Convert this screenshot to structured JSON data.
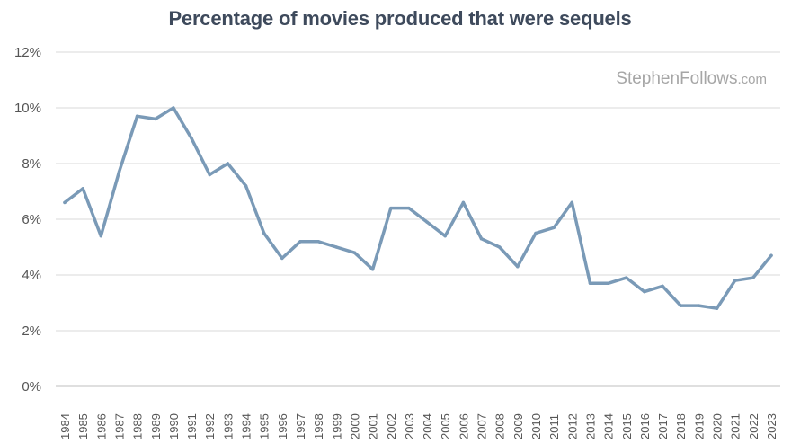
{
  "chart_data": {
    "type": "line",
    "title": "Percentage of movies produced that were sequels",
    "xlabel": "",
    "ylabel": "",
    "watermark": {
      "main": "StephenFollows",
      "suffix": ".com"
    },
    "categories": [
      "1984",
      "1985",
      "1986",
      "1987",
      "1988",
      "1989",
      "1990",
      "1991",
      "1992",
      "1993",
      "1994",
      "1995",
      "1996",
      "1997",
      "1998",
      "1999",
      "2000",
      "2001",
      "2002",
      "2003",
      "2004",
      "2005",
      "2006",
      "2007",
      "2008",
      "2009",
      "2010",
      "2011",
      "2012",
      "2013",
      "2014",
      "2015",
      "2016",
      "2017",
      "2018",
      "2019",
      "2020",
      "2021",
      "2022",
      "2023"
    ],
    "series": [
      {
        "values": [
          6.6,
          7.1,
          5.4,
          7.7,
          9.7,
          9.6,
          10.0,
          8.9,
          7.6,
          8.0,
          7.2,
          5.5,
          4.6,
          5.2,
          5.2,
          5.0,
          4.8,
          4.2,
          6.4,
          6.4,
          5.9,
          5.4,
          6.6,
          5.3,
          5.0,
          4.3,
          5.5,
          5.7,
          6.6,
          3.7,
          3.7,
          3.9,
          3.4,
          3.6,
          2.9,
          2.9,
          2.8,
          3.8,
          3.9,
          4.7
        ],
        "color": "#7a9ab7"
      }
    ],
    "yticks": [
      "0%",
      "2%",
      "4%",
      "6%",
      "8%",
      "10%",
      "12%"
    ],
    "ylim": [
      0,
      12
    ],
    "grid": true,
    "colors": {
      "line": "#7a9ab7",
      "grid": "#d9d9d9",
      "text": "#555555",
      "title": "#3e4a5c"
    }
  }
}
